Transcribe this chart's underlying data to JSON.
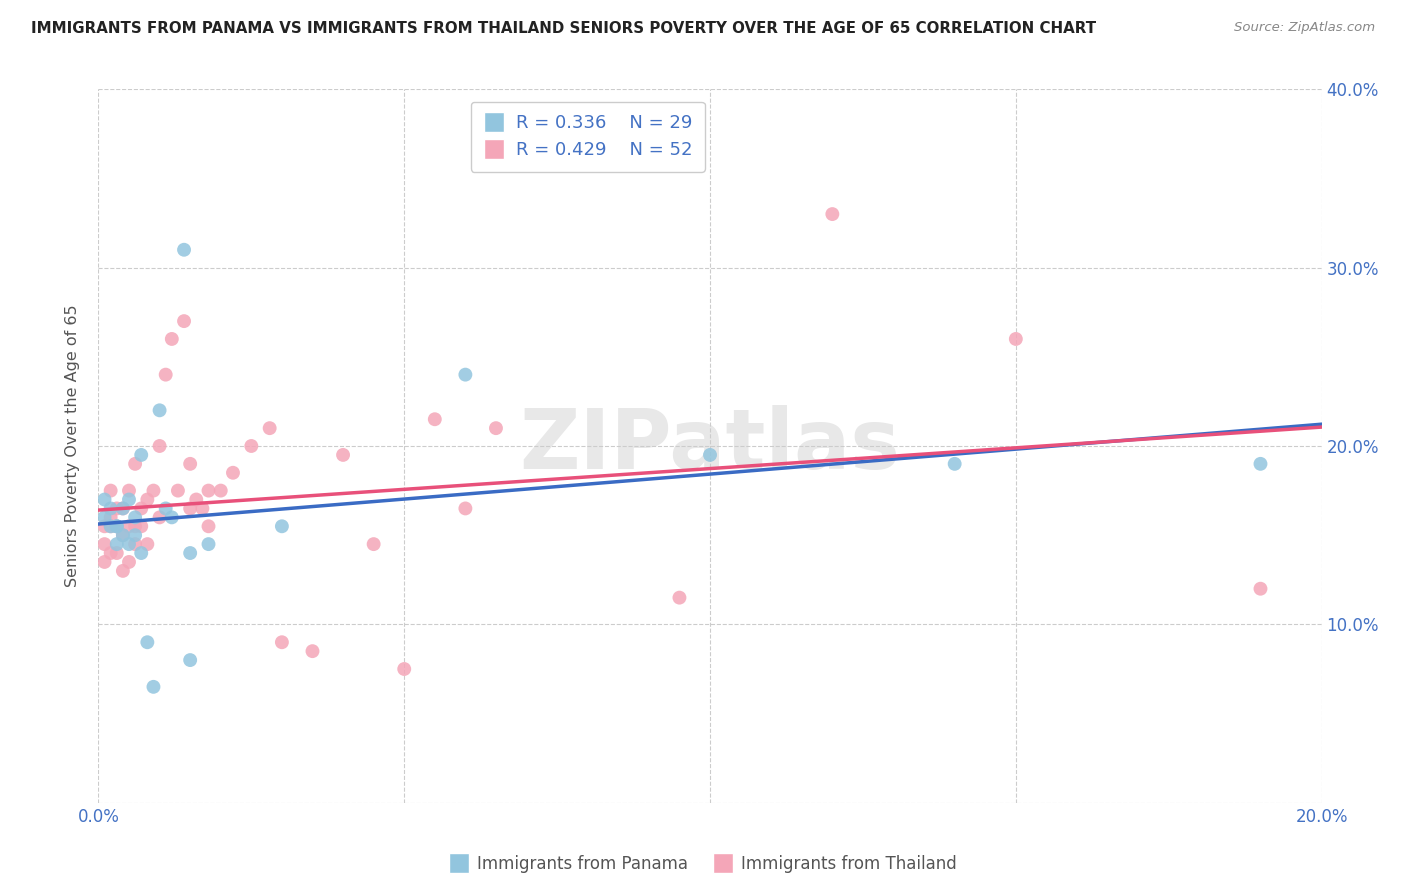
{
  "title": "IMMIGRANTS FROM PANAMA VS IMMIGRANTS FROM THAILAND SENIORS POVERTY OVER THE AGE OF 65 CORRELATION CHART",
  "source": "Source: ZipAtlas.com",
  "ylabel": "Seniors Poverty Over the Age of 65",
  "xlim": [
    0,
    0.2
  ],
  "ylim": [
    0,
    0.4
  ],
  "xticks": [
    0.0,
    0.05,
    0.1,
    0.15,
    0.2
  ],
  "yticks": [
    0.0,
    0.1,
    0.2,
    0.3,
    0.4
  ],
  "xtick_labels": [
    "0.0%",
    "",
    "",
    "",
    "20.0%"
  ],
  "ytick_labels_right": [
    "",
    "10.0%",
    "20.0%",
    "30.0%",
    "40.0%"
  ],
  "legend1_r": "R = 0.336",
  "legend1_n": "N = 29",
  "legend2_r": "R = 0.429",
  "legend2_n": "N = 52",
  "label1": "Immigrants from Panama",
  "label2": "Immigrants from Thailand",
  "color1": "#92C5DE",
  "color2": "#F4A6B8",
  "line_color1": "#3A6BC4",
  "line_color2": "#E8507A",
  "background_color": "#FFFFFF",
  "watermark": "ZIPatlas",
  "panama_x": [
    0.001,
    0.001,
    0.002,
    0.002,
    0.003,
    0.003,
    0.003,
    0.004,
    0.004,
    0.005,
    0.005,
    0.006,
    0.006,
    0.007,
    0.007,
    0.008,
    0.009,
    0.01,
    0.011,
    0.012,
    0.014,
    0.015,
    0.015,
    0.018,
    0.03,
    0.06,
    0.1,
    0.14,
    0.19
  ],
  "panama_y": [
    0.17,
    0.16,
    0.155,
    0.165,
    0.145,
    0.155,
    0.155,
    0.15,
    0.165,
    0.145,
    0.17,
    0.15,
    0.16,
    0.14,
    0.195,
    0.09,
    0.065,
    0.22,
    0.165,
    0.16,
    0.31,
    0.14,
    0.08,
    0.145,
    0.155,
    0.24,
    0.195,
    0.19,
    0.19
  ],
  "thailand_x": [
    0.001,
    0.001,
    0.001,
    0.002,
    0.002,
    0.002,
    0.002,
    0.003,
    0.003,
    0.003,
    0.004,
    0.004,
    0.004,
    0.005,
    0.005,
    0.005,
    0.006,
    0.006,
    0.006,
    0.007,
    0.007,
    0.008,
    0.008,
    0.009,
    0.01,
    0.01,
    0.011,
    0.012,
    0.013,
    0.014,
    0.015,
    0.015,
    0.016,
    0.017,
    0.018,
    0.018,
    0.02,
    0.022,
    0.025,
    0.028,
    0.03,
    0.035,
    0.04,
    0.045,
    0.05,
    0.055,
    0.06,
    0.065,
    0.095,
    0.12,
    0.15,
    0.19
  ],
  "thailand_y": [
    0.135,
    0.145,
    0.155,
    0.14,
    0.155,
    0.16,
    0.175,
    0.14,
    0.155,
    0.165,
    0.13,
    0.15,
    0.165,
    0.135,
    0.155,
    0.175,
    0.145,
    0.155,
    0.19,
    0.155,
    0.165,
    0.145,
    0.17,
    0.175,
    0.16,
    0.2,
    0.24,
    0.26,
    0.175,
    0.27,
    0.19,
    0.165,
    0.17,
    0.165,
    0.155,
    0.175,
    0.175,
    0.185,
    0.2,
    0.21,
    0.09,
    0.085,
    0.195,
    0.145,
    0.075,
    0.215,
    0.165,
    0.21,
    0.115,
    0.33,
    0.26,
    0.12
  ]
}
